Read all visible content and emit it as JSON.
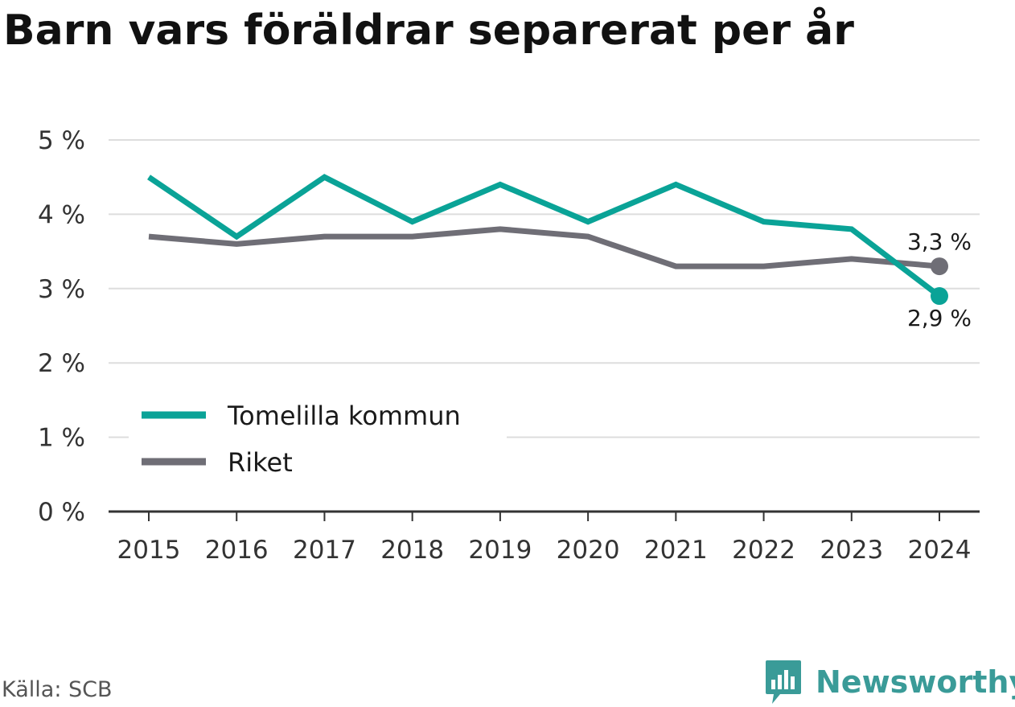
{
  "title": "Barn vars föräldrar separerat per år",
  "source": "Källa: SCB",
  "brand": {
    "name": "Newsworthy",
    "icon": "newsworthy-logo-icon",
    "color": "#3a9b98"
  },
  "chart_data": {
    "type": "line",
    "title": "Barn vars föräldrar separerat per år",
    "x": [
      "2015",
      "2016",
      "2017",
      "2018",
      "2019",
      "2020",
      "2021",
      "2022",
      "2023",
      "2024"
    ],
    "series": [
      {
        "name": "Tomelilla kommun",
        "color": "#0aa397",
        "values": [
          4.5,
          3.7,
          4.5,
          3.9,
          4.4,
          3.9,
          4.4,
          3.9,
          3.8,
          2.9
        ],
        "end_label": "2,9 %"
      },
      {
        "name": "Riket",
        "color": "#6f6e76",
        "values": [
          3.7,
          3.6,
          3.7,
          3.7,
          3.8,
          3.7,
          3.3,
          3.3,
          3.4,
          3.3
        ],
        "end_label": "3,3 %"
      }
    ],
    "y_ticks": [
      {
        "value": 0,
        "label": "0 %"
      },
      {
        "value": 1,
        "label": "1 %"
      },
      {
        "value": 2,
        "label": "2 %"
      },
      {
        "value": 3,
        "label": "3 %"
      },
      {
        "value": 4,
        "label": "4 %"
      },
      {
        "value": 5,
        "label": "5 %"
      }
    ],
    "ylim": [
      0,
      5
    ],
    "grid": true,
    "legend_position": "bottom-left"
  }
}
